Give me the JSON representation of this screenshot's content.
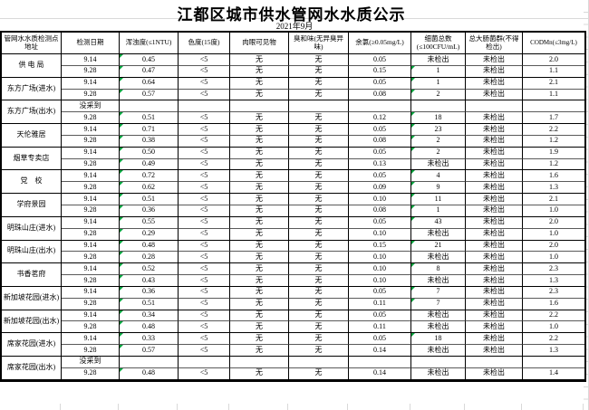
{
  "title": "江都区城市供水管网水水质公示",
  "subtitle": "2021年9月",
  "colors": {
    "border": "#000000",
    "gridline": "#d9d9d9",
    "flag_green": "#00a33c"
  },
  "table": {
    "headers": [
      "管网水水质检测点地址",
      "检测日期",
      "浑浊度(≤1NTU)",
      "色度(15度)",
      "肉眼可见物",
      "臭和味(无异臭异味)",
      "余氯(≥0.05mg/L)",
      "细菌总数(≤100CFU/mL)",
      "总大肠菌群(不得检出)",
      "CODMn(≤3mg/L)"
    ],
    "no_sample_label": "没采到",
    "not_detected_label": "未检出",
    "groups": [
      {
        "name": "供 电 局",
        "rows": [
          {
            "date": "9.14",
            "turbidity": "0.45",
            "color": "<5",
            "visible": "无",
            "odor": "无",
            "chlorine": "0.05",
            "bacteria": "未检出",
            "coliform": "未检出",
            "cod": "2.0"
          },
          {
            "date": "9.28",
            "turbidity": "0.47",
            "color": "<5",
            "visible": "无",
            "odor": "无",
            "chlorine": "0.15",
            "bacteria": "1",
            "coliform": "未检出",
            "cod": "1.1"
          }
        ]
      },
      {
        "name": "东方广场(进水)",
        "rows": [
          {
            "date": "9.14",
            "turbidity": "0.64",
            "color": "<5",
            "visible": "无",
            "odor": "无",
            "chlorine": "0.05",
            "bacteria": "1",
            "coliform": "未检出",
            "cod": "2.1"
          },
          {
            "date": "9.28",
            "turbidity": "0.57",
            "color": "<5",
            "visible": "无",
            "odor": "无",
            "chlorine": "0.08",
            "bacteria": "2",
            "coliform": "未检出",
            "cod": "1.1"
          }
        ]
      },
      {
        "name": "东方广场(出水)",
        "rows": [
          {
            "date": "没采到",
            "no_sample": true,
            "turbidity": "",
            "color": "",
            "visible": "",
            "odor": "",
            "chlorine": "",
            "bacteria": "",
            "coliform": "",
            "cod": ""
          },
          {
            "date": "9.28",
            "turbidity": "0.51",
            "color": "<5",
            "visible": "无",
            "odor": "无",
            "chlorine": "0.12",
            "bacteria": "18",
            "coliform": "未检出",
            "cod": "1.7"
          }
        ]
      },
      {
        "name": "天伦雅居",
        "rows": [
          {
            "date": "9.14",
            "turbidity": "0.71",
            "color": "<5",
            "visible": "无",
            "odor": "无",
            "chlorine": "0.05",
            "bacteria": "23",
            "coliform": "未检出",
            "cod": "2.2"
          },
          {
            "date": "9.28",
            "turbidity": "0.38",
            "color": "<5",
            "visible": "无",
            "odor": "无",
            "chlorine": "0.08",
            "bacteria": "2",
            "coliform": "未检出",
            "cod": "1.2"
          }
        ]
      },
      {
        "name": "烟草专卖店",
        "rows": [
          {
            "date": "9.14",
            "turbidity": "0.50",
            "color": "<5",
            "visible": "无",
            "odor": "无",
            "chlorine": "0.05",
            "bacteria": "2",
            "coliform": "未检出",
            "cod": "1.9"
          },
          {
            "date": "9.28",
            "turbidity": "0.49",
            "color": "<5",
            "visible": "无",
            "odor": "无",
            "chlorine": "0.13",
            "bacteria": "未检出",
            "coliform": "未检出",
            "cod": "1.2"
          }
        ]
      },
      {
        "name": "党　校",
        "rows": [
          {
            "date": "9.14",
            "turbidity": "0.72",
            "color": "<5",
            "visible": "无",
            "odor": "无",
            "chlorine": "0.05",
            "bacteria": "4",
            "coliform": "未检出",
            "cod": "1.6"
          },
          {
            "date": "9.28",
            "turbidity": "0.62",
            "color": "<5",
            "visible": "无",
            "odor": "无",
            "chlorine": "0.09",
            "bacteria": "9",
            "coliform": "未检出",
            "cod": "1.3"
          }
        ]
      },
      {
        "name": "学府景园",
        "rows": [
          {
            "date": "9.14",
            "turbidity": "0.51",
            "color": "<5",
            "visible": "无",
            "odor": "无",
            "chlorine": "0.10",
            "bacteria": "11",
            "coliform": "未检出",
            "cod": "2.1"
          },
          {
            "date": "9.28",
            "turbidity": "0.36",
            "color": "<5",
            "visible": "无",
            "odor": "无",
            "chlorine": "0.08",
            "bacteria": "1",
            "coliform": "未检出",
            "cod": "1.0"
          }
        ]
      },
      {
        "name": "明珠山庄(进水)",
        "rows": [
          {
            "date": "9.14",
            "turbidity": "0.55",
            "color": "<5",
            "visible": "无",
            "odor": "无",
            "chlorine": "0.05",
            "bacteria": "43",
            "coliform": "未检出",
            "cod": "2.0"
          },
          {
            "date": "9.28",
            "turbidity": "0.29",
            "color": "<5",
            "visible": "无",
            "odor": "无",
            "chlorine": "0.10",
            "bacteria": "未检出",
            "coliform": "未检出",
            "cod": "1.0"
          }
        ]
      },
      {
        "name": "明珠山庄(出水)",
        "rows": [
          {
            "date": "9.14",
            "turbidity": "0.48",
            "color": "<5",
            "visible": "无",
            "odor": "无",
            "chlorine": "0.15",
            "bacteria": "21",
            "coliform": "未检出",
            "cod": "2.0"
          },
          {
            "date": "9.28",
            "turbidity": "0.28",
            "color": "<5",
            "visible": "无",
            "odor": "无",
            "chlorine": "0.10",
            "bacteria": "未检出",
            "coliform": "未检出",
            "cod": "1.0"
          }
        ]
      },
      {
        "name": "书香茗府",
        "rows": [
          {
            "date": "9.14",
            "turbidity": "0.52",
            "color": "<5",
            "visible": "无",
            "odor": "无",
            "chlorine": "0.10",
            "bacteria": "8",
            "coliform": "未检出",
            "cod": "2.3"
          },
          {
            "date": "9.28",
            "turbidity": "0.43",
            "color": "<5",
            "visible": "无",
            "odor": "无",
            "chlorine": "0.10",
            "bacteria": "未检出",
            "coliform": "未检出",
            "cod": "1.3"
          }
        ]
      },
      {
        "name": "新加坡花园(进水)",
        "rows": [
          {
            "date": "9.14",
            "turbidity": "0.36",
            "color": "<5",
            "visible": "无",
            "odor": "无",
            "chlorine": "0.05",
            "bacteria": "7",
            "coliform": "未检出",
            "cod": "2.3"
          },
          {
            "date": "9.28",
            "turbidity": "0.51",
            "color": "<5",
            "visible": "无",
            "odor": "无",
            "chlorine": "0.11",
            "bacteria": "7",
            "coliform": "未检出",
            "cod": "1.6"
          }
        ]
      },
      {
        "name": "新加坡花园(出水)",
        "rows": [
          {
            "date": "9.14",
            "turbidity": "0.34",
            "color": "<5",
            "visible": "无",
            "odor": "无",
            "chlorine": "0.05",
            "bacteria": "未检出",
            "coliform": "未检出",
            "cod": "2.2"
          },
          {
            "date": "9.28",
            "turbidity": "0.48",
            "color": "<5",
            "visible": "无",
            "odor": "无",
            "chlorine": "0.11",
            "bacteria": "未检出",
            "coliform": "未检出",
            "cod": "1.0"
          }
        ]
      },
      {
        "name": "席家花园(进水)",
        "rows": [
          {
            "date": "9.14",
            "turbidity": "0.33",
            "color": "<5",
            "visible": "无",
            "odor": "无",
            "chlorine": "0.05",
            "bacteria": "18",
            "coliform": "未检出",
            "cod": "2.2"
          },
          {
            "date": "9.28",
            "turbidity": "0.57",
            "color": "<5",
            "visible": "无",
            "odor": "无",
            "chlorine": "0.14",
            "bacteria": "未检出",
            "coliform": "未检出",
            "cod": "1.3"
          }
        ]
      },
      {
        "name": "席家花园(出水)",
        "rows": [
          {
            "date": "没采到",
            "no_sample": true,
            "turbidity": "",
            "color": "",
            "visible": "",
            "odor": "",
            "chlorine": "",
            "bacteria": "",
            "coliform": "",
            "cod": ""
          },
          {
            "date": "9.28",
            "turbidity": "0.48",
            "color": "<5",
            "visible": "无",
            "odor": "无",
            "chlorine": "0.14",
            "bacteria": "未检出",
            "coliform": "未检出",
            "cod": "1.4"
          }
        ]
      }
    ]
  }
}
